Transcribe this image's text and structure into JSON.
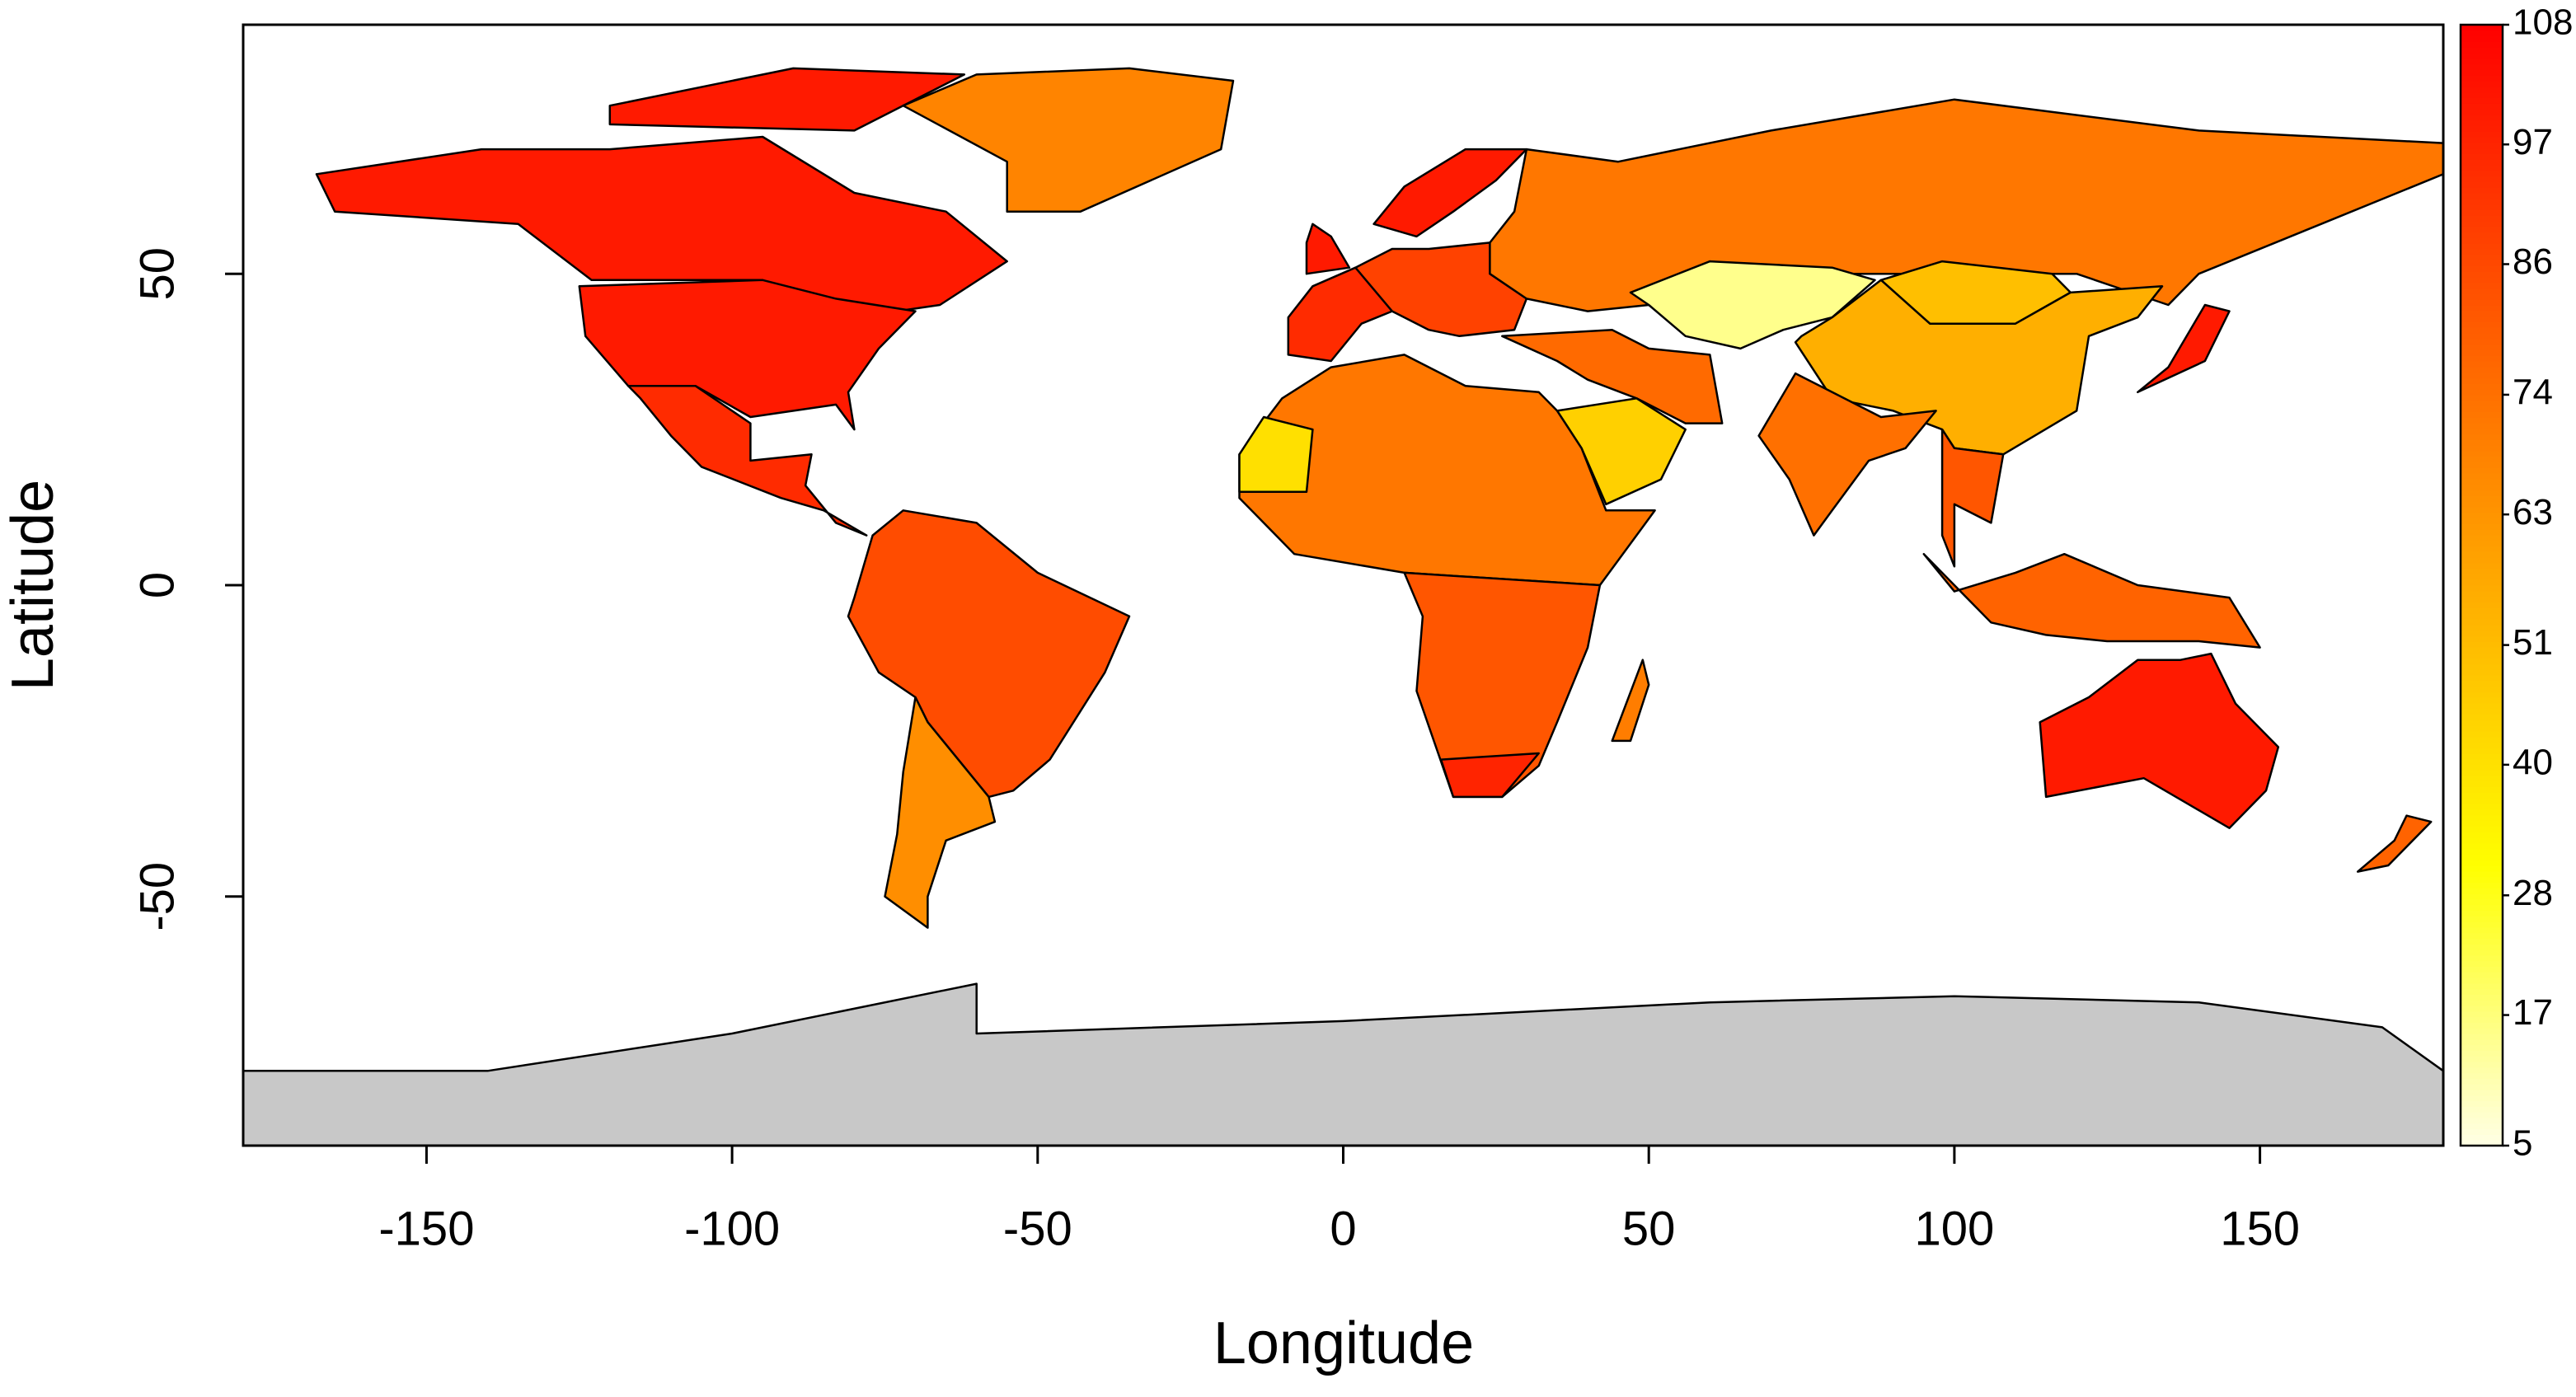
{
  "chart_data": {
    "type": "choropleth",
    "x_label": "Longitude",
    "y_label": "Latitude",
    "xlim": [
      -180,
      180
    ],
    "ylim": [
      -90,
      90
    ],
    "xticks": [
      -150,
      -100,
      -50,
      0,
      50,
      100,
      150
    ],
    "yticks": [
      -50,
      0,
      50
    ],
    "colorlim": [
      5,
      108
    ],
    "colorticks": [
      5,
      17,
      28,
      40,
      51,
      63,
      74,
      86,
      97,
      108
    ],
    "colormap": "heat",
    "missing_color": "#c8c8c8",
    "regions": [
      {
        "value": 100,
        "polygon": [
          [
            -168,
            66
          ],
          [
            -141,
            70
          ],
          [
            -120,
            70
          ],
          [
            -95,
            72
          ],
          [
            -80,
            63
          ],
          [
            -65,
            60
          ],
          [
            -55,
            52
          ],
          [
            -66,
            45
          ],
          [
            -80,
            43
          ],
          [
            -95,
            49
          ],
          [
            -123,
            49
          ],
          [
            -135,
            58
          ],
          [
            -165,
            60
          ]
        ]
      },
      {
        "value": 100,
        "polygon": [
          [
            -120,
            74
          ],
          [
            -80,
            73
          ],
          [
            -62,
            82
          ],
          [
            -90,
            83
          ],
          [
            -120,
            77
          ]
        ]
      },
      {
        "value": 100,
        "polygon": [
          [
            -125,
            48
          ],
          [
            -95,
            49
          ],
          [
            -83,
            46
          ],
          [
            -70,
            44
          ],
          [
            -76,
            38
          ],
          [
            -81,
            31
          ],
          [
            -80,
            25
          ],
          [
            -83,
            29
          ],
          [
            -97,
            27
          ],
          [
            -106,
            32
          ],
          [
            -117,
            32
          ],
          [
            -124,
            40
          ]
        ]
      },
      {
        "value": 95,
        "polygon": [
          [
            -117,
            32
          ],
          [
            -106,
            32
          ],
          [
            -97,
            26
          ],
          [
            -97,
            20
          ],
          [
            -87,
            21
          ],
          [
            -88,
            16
          ],
          [
            -83,
            10
          ],
          [
            -78,
            8
          ],
          [
            -85,
            12
          ],
          [
            -92,
            14
          ],
          [
            -105,
            19
          ],
          [
            -110,
            24
          ],
          [
            -115,
            30
          ]
        ]
      },
      {
        "value": 68,
        "polygon": [
          [
            -55,
            60
          ],
          [
            -43,
            60
          ],
          [
            -20,
            70
          ],
          [
            -18,
            81
          ],
          [
            -35,
            83
          ],
          [
            -60,
            82
          ],
          [
            -72,
            77
          ],
          [
            -55,
            68
          ]
        ]
      },
      {
        "value": 85,
        "polygon": [
          [
            -80,
            -2
          ],
          [
            -77,
            8
          ],
          [
            -72,
            12
          ],
          [
            -60,
            10
          ],
          [
            -50,
            2
          ],
          [
            -35,
            -5
          ],
          [
            -39,
            -14
          ],
          [
            -48,
            -28
          ],
          [
            -54,
            -33
          ],
          [
            -58,
            -34
          ],
          [
            -68,
            -22
          ],
          [
            -70,
            -18
          ],
          [
            -76,
            -14
          ],
          [
            -81,
            -5
          ]
        ]
      },
      {
        "value": 65,
        "polygon": [
          [
            -70,
            -18
          ],
          [
            -68,
            -22
          ],
          [
            -58,
            -34
          ],
          [
            -57,
            -38
          ],
          [
            -65,
            -41
          ],
          [
            -68,
            -50
          ],
          [
            -68,
            -55
          ],
          [
            -75,
            -50
          ],
          [
            -73,
            -40
          ],
          [
            -72,
            -30
          ]
        ]
      },
      {
        "value": 95,
        "polygon": [
          [
            -9,
            43
          ],
          [
            -9,
            37
          ],
          [
            -2,
            36
          ],
          [
            3,
            42
          ],
          [
            8,
            44
          ],
          [
            8,
            48
          ],
          [
            2,
            51
          ],
          [
            -5,
            48
          ]
        ]
      },
      {
        "value": 100,
        "polygon": [
          [
            -6,
            50
          ],
          [
            1,
            51
          ],
          [
            -2,
            56
          ],
          [
            -5,
            58
          ],
          [
            -6,
            55
          ]
        ]
      },
      {
        "value": 100,
        "polygon": [
          [
            5,
            58
          ],
          [
            12,
            56
          ],
          [
            18,
            60
          ],
          [
            25,
            65
          ],
          [
            30,
            70
          ],
          [
            20,
            70
          ],
          [
            10,
            64
          ]
        ]
      },
      {
        "value": 88,
        "polygon": [
          [
            2,
            51
          ],
          [
            8,
            44
          ],
          [
            14,
            41
          ],
          [
            19,
            40
          ],
          [
            28,
            41
          ],
          [
            30,
            46
          ],
          [
            24,
            50
          ],
          [
            24,
            55
          ],
          [
            14,
            54
          ],
          [
            8,
            54
          ]
        ]
      },
      {
        "value": 72,
        "polygon": [
          [
            30,
            46
          ],
          [
            40,
            44
          ],
          [
            50,
            45
          ],
          [
            60,
            52
          ],
          [
            80,
            50
          ],
          [
            90,
            50
          ],
          [
            120,
            50
          ],
          [
            135,
            45
          ],
          [
            140,
            50
          ],
          [
            160,
            58
          ],
          [
            180,
            66
          ],
          [
            180,
            71
          ],
          [
            140,
            73
          ],
          [
            100,
            78
          ],
          [
            70,
            73
          ],
          [
            45,
            68
          ],
          [
            30,
            70
          ],
          [
            28,
            60
          ],
          [
            24,
            55
          ],
          [
            24,
            50
          ]
        ]
      },
      {
        "value": 15,
        "polygon": [
          [
            47,
            47
          ],
          [
            50,
            45
          ],
          [
            56,
            40
          ],
          [
            65,
            38
          ],
          [
            72,
            41
          ],
          [
            80,
            43
          ],
          [
            87,
            49
          ],
          [
            80,
            51
          ],
          [
            60,
            52
          ]
        ]
      },
      {
        "value": 50,
        "polygon": [
          [
            88,
            49
          ],
          [
            98,
            52
          ],
          [
            116,
            50
          ],
          [
            119,
            47
          ],
          [
            110,
            42
          ],
          [
            96,
            42
          ]
        ]
      },
      {
        "value": 55,
        "polygon": [
          [
            74,
            39
          ],
          [
            80,
            30
          ],
          [
            90,
            28
          ],
          [
            98,
            25
          ],
          [
            100,
            22
          ],
          [
            108,
            21
          ],
          [
            120,
            28
          ],
          [
            122,
            40
          ],
          [
            130,
            43
          ],
          [
            134,
            48
          ],
          [
            119,
            47
          ],
          [
            110,
            42
          ],
          [
            96,
            42
          ],
          [
            88,
            49
          ],
          [
            80,
            43
          ],
          [
            75,
            40
          ]
        ]
      },
      {
        "value": 74,
        "polygon": [
          [
            68,
            24
          ],
          [
            74,
            34
          ],
          [
            80,
            31
          ],
          [
            88,
            27
          ],
          [
            97,
            28
          ],
          [
            92,
            22
          ],
          [
            86,
            20
          ],
          [
            80,
            12
          ],
          [
            77,
            8
          ],
          [
            73,
            17
          ]
        ]
      },
      {
        "value": 76,
        "polygon": [
          [
            26,
            40
          ],
          [
            44,
            41
          ],
          [
            50,
            38
          ],
          [
            60,
            37
          ],
          [
            62,
            26
          ],
          [
            56,
            26
          ],
          [
            48,
            30
          ],
          [
            40,
            33
          ],
          [
            35,
            36
          ]
        ]
      },
      {
        "value": 45,
        "polygon": [
          [
            35,
            28
          ],
          [
            48,
            30
          ],
          [
            56,
            25
          ],
          [
            52,
            17
          ],
          [
            43,
            13
          ],
          [
            39,
            22
          ]
        ]
      },
      {
        "value": 82,
        "polygon": [
          [
            98,
            25
          ],
          [
            100,
            22
          ],
          [
            108,
            21
          ],
          [
            106,
            10
          ],
          [
            100,
            13
          ],
          [
            100,
            3
          ],
          [
            98,
            8
          ]
        ]
      },
      {
        "value": 78,
        "polygon": [
          [
            95,
            5
          ],
          [
            106,
            -6
          ],
          [
            115,
            -8
          ],
          [
            125,
            -9
          ],
          [
            140,
            -9
          ],
          [
            150,
            -10
          ],
          [
            145,
            -2
          ],
          [
            130,
            0
          ],
          [
            118,
            5
          ],
          [
            110,
            2
          ],
          [
            100,
            -1
          ]
        ]
      },
      {
        "value": 100,
        "polygon": [
          [
            130,
            31
          ],
          [
            141,
            36
          ],
          [
            145,
            44
          ],
          [
            141,
            45
          ],
          [
            135,
            35
          ]
        ]
      },
      {
        "value": 100,
        "polygon": [
          [
            114,
            -22
          ],
          [
            122,
            -18
          ],
          [
            130,
            -12
          ],
          [
            137,
            -12
          ],
          [
            142,
            -11
          ],
          [
            146,
            -19
          ],
          [
            153,
            -26
          ],
          [
            151,
            -33
          ],
          [
            145,
            -39
          ],
          [
            138,
            -35
          ],
          [
            131,
            -31
          ],
          [
            115,
            -34
          ]
        ]
      },
      {
        "value": 78,
        "polygon": [
          [
            166,
            -46
          ],
          [
            172,
            -41
          ],
          [
            174,
            -37
          ],
          [
            178,
            -38
          ],
          [
            171,
            -45
          ]
        ]
      },
      {
        "value": 72,
        "polygon": [
          [
            -17,
            21
          ],
          [
            -10,
            30
          ],
          [
            -2,
            35
          ],
          [
            10,
            37
          ],
          [
            20,
            32
          ],
          [
            32,
            31
          ],
          [
            35,
            28
          ],
          [
            39,
            22
          ],
          [
            43,
            12
          ],
          [
            51,
            12
          ],
          [
            42,
            0
          ],
          [
            10,
            2
          ],
          [
            -8,
            5
          ],
          [
            -17,
            14
          ]
        ]
      },
      {
        "value": 40,
        "polygon": [
          [
            -17,
            15
          ],
          [
            -17,
            21
          ],
          [
            -13,
            27
          ],
          [
            -5,
            25
          ],
          [
            -6,
            15
          ]
        ]
      },
      {
        "value": 82,
        "polygon": [
          [
            10,
            2
          ],
          [
            42,
            0
          ],
          [
            40,
            -10
          ],
          [
            35,
            -22
          ],
          [
            32,
            -29
          ],
          [
            26,
            -34
          ],
          [
            18,
            -34
          ],
          [
            12,
            -17
          ],
          [
            13,
            -5
          ]
        ]
      },
      {
        "value": 97,
        "polygon": [
          [
            16,
            -28
          ],
          [
            32,
            -27
          ],
          [
            26,
            -34
          ],
          [
            18,
            -34
          ]
        ]
      },
      {
        "value": 70,
        "polygon": [
          [
            44,
            -25
          ],
          [
            49,
            -12
          ],
          [
            50,
            -16
          ],
          [
            47,
            -25
          ]
        ]
      },
      {
        "value": null,
        "polygon": [
          [
            -180,
            -78
          ],
          [
            -140,
            -78
          ],
          [
            -100,
            -72
          ],
          [
            -60,
            -64
          ],
          [
            -60,
            -72
          ],
          [
            0,
            -70
          ],
          [
            60,
            -67
          ],
          [
            100,
            -66
          ],
          [
            140,
            -67
          ],
          [
            170,
            -71
          ],
          [
            180,
            -78
          ],
          [
            180,
            -90
          ],
          [
            -180,
            -90
          ]
        ]
      }
    ]
  }
}
